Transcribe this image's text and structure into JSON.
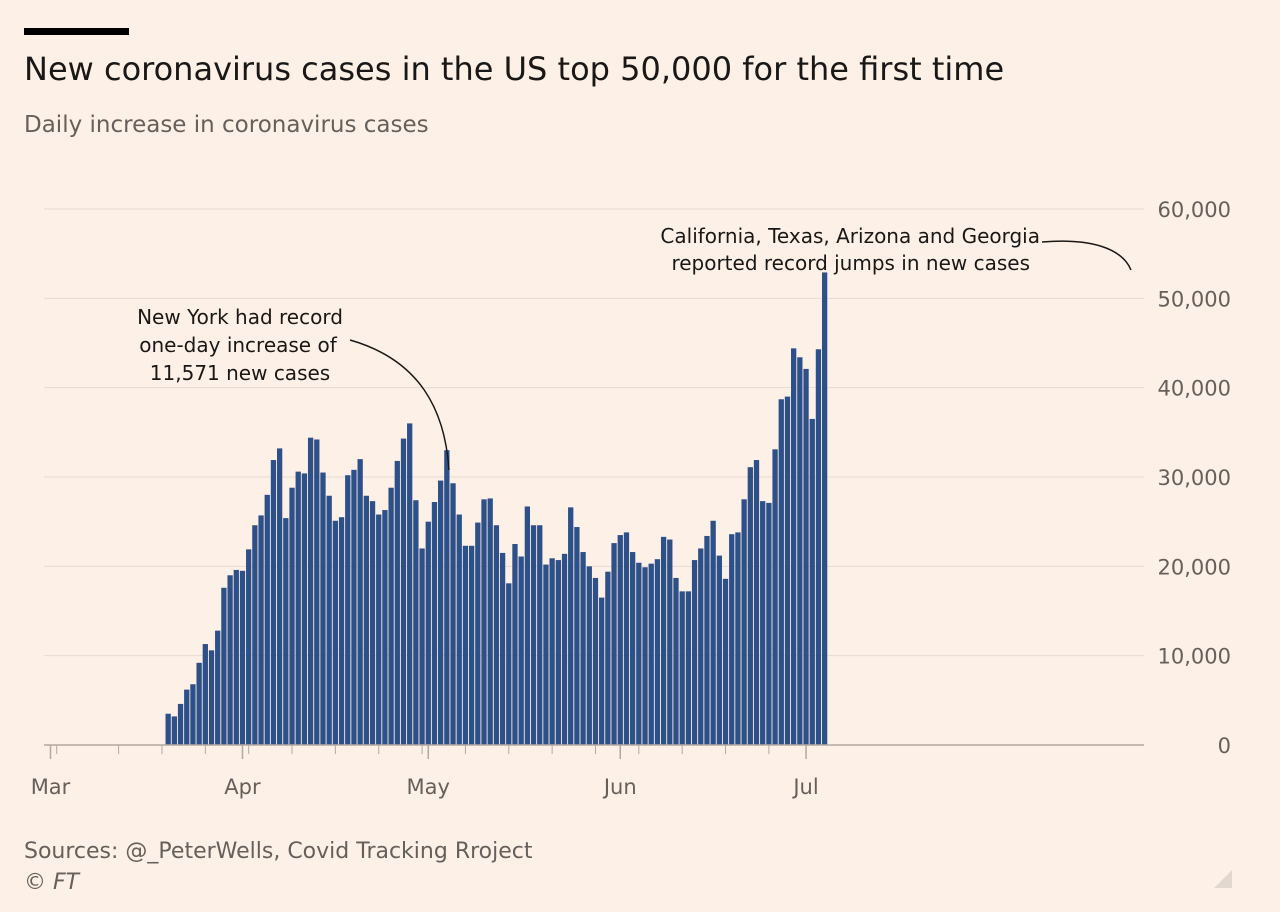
{
  "header": {
    "title": "New coronavirus cases in the US top 50,000 for the first time",
    "subtitle": "Daily increase in coronavirus cases"
  },
  "footer": {
    "sources": "Sources: @_PeterWells, Covid Tracking Rroject",
    "copyright": "© FT"
  },
  "colors": {
    "bar": "#2e5089",
    "background": "#fdf0e6",
    "grid": "#e6dbd3",
    "axis": "#b3a9a2",
    "text": "#66605c"
  },
  "chart_data": {
    "type": "bar",
    "title": "New coronavirus cases in the US top 50,000 for the first time",
    "subtitle": "Daily increase in coronavirus cases",
    "x_start": "2020-03-01",
    "y_axis_position": "right",
    "ylim": [
      0,
      60000
    ],
    "y_ticks": [
      0,
      10000,
      20000,
      30000,
      40000,
      50000,
      60000
    ],
    "y_tick_labels": [
      "0",
      "10,000",
      "20,000",
      "30,000",
      "40,000",
      "50,000",
      "60,000"
    ],
    "x_tick_labels": [
      "Mar",
      "Apr",
      "May",
      "Jun",
      "Jul"
    ],
    "grid": true,
    "series": [
      {
        "values": [
          0,
          0,
          0,
          0,
          0,
          0,
          0,
          0,
          0,
          0,
          0,
          0,
          0,
          0,
          0,
          0,
          0,
          0,
          0,
          3500,
          3200,
          4600,
          6200,
          6800,
          9200,
          11300,
          10600,
          12800,
          17600,
          19000,
          19600,
          19500,
          21900,
          24600,
          25700,
          28000,
          31900,
          33200,
          25400,
          28800,
          30600,
          30400,
          34400,
          34200,
          30500,
          27900,
          25100,
          25500,
          30200,
          30800,
          32000,
          27900,
          27300,
          25800,
          26300,
          28800,
          31800,
          34300,
          36000,
          27400,
          22000,
          25000,
          27200,
          29600,
          33000,
          29300,
          25800,
          22300,
          22300,
          24900,
          27500,
          27600,
          24600,
          21500,
          18100,
          22500,
          21100,
          26700,
          24600,
          24600,
          20200,
          20900,
          20700,
          21400,
          26600,
          24400,
          21600,
          20000,
          18700,
          16500,
          19400,
          22600,
          23500,
          23800,
          21600,
          20400,
          19900,
          20300,
          20800,
          23300,
          23000,
          18700,
          17200,
          17200,
          20700,
          22000,
          23400,
          25100,
          21200,
          18600,
          23600,
          23800,
          27500,
          31100,
          31900,
          27300,
          27100,
          33100,
          38700,
          39000,
          44400,
          43400,
          42100,
          36500,
          44300,
          52900
        ]
      }
    ],
    "annotations": [
      {
        "lines": [
          "New York had record",
          "one-day increase of",
          "11,571 new cases"
        ]
      },
      {
        "lines": [
          "California, Texas, Arizona and Georgia",
          "reported record jumps in new cases"
        ]
      }
    ]
  }
}
